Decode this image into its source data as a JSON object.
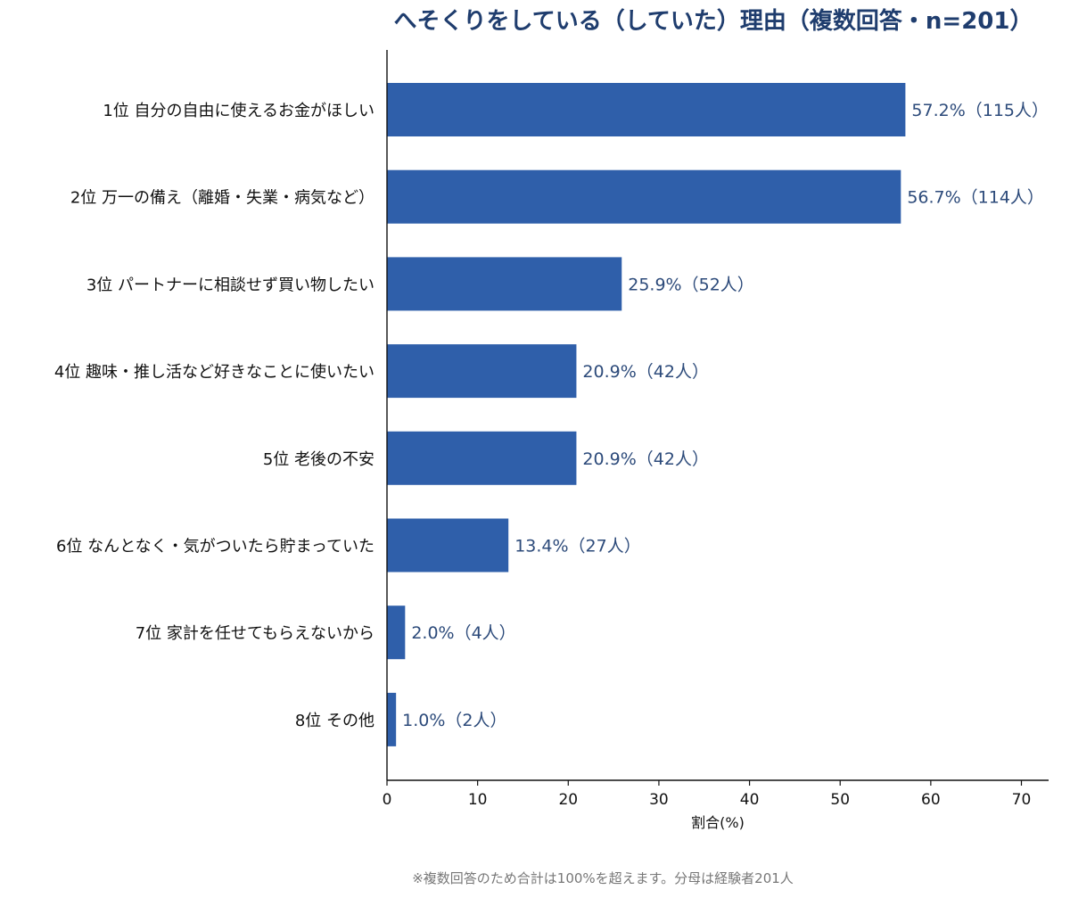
{
  "chart_data": {
    "type": "bar",
    "orientation": "horizontal",
    "title": "へそくりをしている（していた）理由（複数回答・n=201）",
    "categories": [
      "1位 自分の自由に使えるお金がほしい",
      "2位 万一の備え（離婚・失業・病気など）",
      "3位 パートナーに相談せず買い物したい",
      "4位 趣味・推し活など好きなことに使いたい",
      "5位 老後の不安",
      "6位 なんとなく・気がついたら貯まっていた",
      "7位 家計を任せてもらえないから",
      "8位 その他"
    ],
    "values": [
      57.2,
      56.7,
      25.9,
      20.9,
      20.9,
      13.4,
      2.0,
      1.0
    ],
    "value_labels": [
      "57.2%（115人）",
      "56.7%（114人）",
      "25.9%（52人）",
      "20.9%（42人）",
      "20.9%（42人）",
      "13.4%（27人）",
      "2.0%（4人）",
      "1.0%（2人）"
    ],
    "xlabel": "割合(%)",
    "ylabel": "",
    "xlim": [
      0,
      73
    ],
    "xticks": [
      0,
      10,
      20,
      30,
      40,
      50,
      60,
      70
    ],
    "grid": false,
    "legend": "none",
    "bar_color": "#2f5faa",
    "footnote": "※複数回答のため合計は100%を超えます。分母は経験者201人"
  }
}
